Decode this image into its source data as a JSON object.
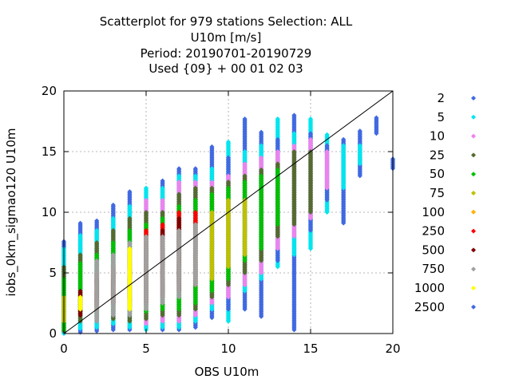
{
  "chart_data": {
    "type": "scatter",
    "title_lines": [
      "Scatterplot for  979 stations Selection: ALL",
      "U10m [m/s]",
      "Period: 20190701-20190729",
      "Used {09} + 00 01 02 03"
    ],
    "xlabel": "OBS U10m",
    "ylabel": "iobs_0km_sigmao120 U10m",
    "xlim": [
      0,
      20
    ],
    "ylim": [
      0,
      20
    ],
    "xticks": [
      0,
      5,
      10,
      15,
      20
    ],
    "yticks": [
      0,
      5,
      10,
      15,
      20
    ],
    "grid": true,
    "legend_position": "right",
    "reference_line": [
      [
        0,
        0
      ],
      [
        20,
        20
      ]
    ],
    "series": [
      {
        "name": "2",
        "color": "#4169e1"
      },
      {
        "name": "5",
        "color": "#00e5ee"
      },
      {
        "name": "10",
        "color": "#ee82ee"
      },
      {
        "name": "25",
        "color": "#556b2f"
      },
      {
        "name": "50",
        "color": "#00c000"
      },
      {
        "name": "75",
        "color": "#c0c000"
      },
      {
        "name": "100",
        "color": "#ffb000"
      },
      {
        "name": "250",
        "color": "#ff0000"
      },
      {
        "name": "500",
        "color": "#800000"
      },
      {
        "name": "750",
        "color": "#a0a0a0"
      },
      {
        "name": "1000",
        "color": "#ffff00"
      },
      {
        "name": "2500",
        "color": "#4169e1"
      }
    ],
    "columns": [
      {
        "x": 0,
        "bands": [
          [
            0,
            7.6,
            "2"
          ],
          [
            0,
            7.0,
            "5"
          ],
          [
            0.2,
            5.5,
            "25"
          ],
          [
            0.3,
            4.5,
            "50"
          ],
          [
            1.0,
            3.0,
            "75"
          ]
        ]
      },
      {
        "x": 1,
        "bands": [
          [
            0.1,
            9.1,
            "2"
          ],
          [
            0.4,
            8.1,
            "5"
          ],
          [
            1.0,
            6.5,
            "25"
          ],
          [
            1.5,
            5.8,
            "50"
          ],
          [
            1.5,
            3.5,
            "500"
          ],
          [
            2.0,
            3.0,
            "1000"
          ]
        ]
      },
      {
        "x": 2,
        "bands": [
          [
            0.2,
            9.3,
            "2"
          ],
          [
            0.5,
            8.5,
            "5"
          ],
          [
            1.0,
            7.5,
            "25"
          ],
          [
            1.5,
            6.5,
            "50"
          ],
          [
            2.0,
            5.0,
            "250"
          ],
          [
            2.5,
            4.5,
            "500"
          ],
          [
            1.0,
            6.0,
            "750"
          ]
        ]
      },
      {
        "x": 3,
        "bands": [
          [
            0.3,
            10.6,
            "2"
          ],
          [
            0.8,
            9.5,
            "5"
          ],
          [
            1.2,
            8.5,
            "25"
          ],
          [
            1.8,
            7.5,
            "50"
          ],
          [
            2.5,
            5.5,
            "250"
          ],
          [
            2.5,
            4.8,
            "500"
          ],
          [
            1.5,
            6.5,
            "750"
          ]
        ]
      },
      {
        "x": 4,
        "bands": [
          [
            0.3,
            11.7,
            "2"
          ],
          [
            0.5,
            10.5,
            "5"
          ],
          [
            1.0,
            9.5,
            "25"
          ],
          [
            1.5,
            8.5,
            "50"
          ],
          [
            2.5,
            7.0,
            "250"
          ],
          [
            2.8,
            6.0,
            "500"
          ],
          [
            1.5,
            7.5,
            "750"
          ],
          [
            2.0,
            7.0,
            "1000"
          ]
        ]
      },
      {
        "x": 5,
        "bands": [
          [
            0.3,
            12.0,
            "5"
          ],
          [
            0.8,
            11.0,
            "10"
          ],
          [
            1.2,
            10.0,
            "25"
          ],
          [
            1.8,
            9.0,
            "50"
          ],
          [
            2.5,
            8.5,
            "250"
          ],
          [
            2.5,
            7.5,
            "500"
          ],
          [
            2.0,
            8.0,
            "750"
          ]
        ]
      },
      {
        "x": 6,
        "bands": [
          [
            0.3,
            12.6,
            "2"
          ],
          [
            0.5,
            12.0,
            "5"
          ],
          [
            1.0,
            11.0,
            "10"
          ],
          [
            1.5,
            10.0,
            "25"
          ],
          [
            2.0,
            9.5,
            "50"
          ],
          [
            3.0,
            9.0,
            "250"
          ],
          [
            3.0,
            8.5,
            "500"
          ],
          [
            2.5,
            8.0,
            "750"
          ]
        ]
      },
      {
        "x": 7,
        "bands": [
          [
            0.3,
            13.6,
            "2"
          ],
          [
            0.5,
            13.0,
            "5"
          ],
          [
            1.0,
            12.5,
            "10"
          ],
          [
            1.5,
            11.5,
            "25"
          ],
          [
            2.0,
            10.5,
            "50"
          ],
          [
            3.5,
            10.0,
            "250"
          ],
          [
            3.5,
            9.5,
            "500"
          ],
          [
            3.0,
            8.5,
            "750"
          ]
        ]
      },
      {
        "x": 8,
        "bands": [
          [
            0.5,
            13.6,
            "2"
          ],
          [
            1.0,
            13.0,
            "5"
          ],
          [
            1.5,
            12.5,
            "10"
          ],
          [
            2.0,
            12.0,
            "25"
          ],
          [
            2.5,
            11.0,
            "50"
          ],
          [
            4.0,
            10.0,
            "250"
          ],
          [
            4.0,
            9.0,
            "750"
          ]
        ]
      },
      {
        "x": 9,
        "bands": [
          [
            1.3,
            15.4,
            "2"
          ],
          [
            2.0,
            13.6,
            "5"
          ],
          [
            2.5,
            12.5,
            "10"
          ],
          [
            3.0,
            12.0,
            "25"
          ],
          [
            3.5,
            11.5,
            "50"
          ],
          [
            4.5,
            10.0,
            "75"
          ]
        ]
      },
      {
        "x": 10,
        "bands": [
          [
            1.0,
            15.8,
            "5"
          ],
          [
            2.0,
            14.5,
            "2"
          ],
          [
            3.0,
            13.0,
            "10"
          ],
          [
            4.0,
            12.5,
            "25"
          ],
          [
            4.5,
            12.0,
            "50"
          ],
          [
            5.5,
            11.0,
            "75"
          ]
        ]
      },
      {
        "x": 11,
        "bands": [
          [
            2.0,
            17.7,
            "2"
          ],
          [
            3.5,
            15.0,
            "5"
          ],
          [
            4.0,
            14.0,
            "10"
          ],
          [
            5.0,
            13.0,
            "25"
          ],
          [
            6.0,
            12.5,
            "50"
          ],
          [
            6.5,
            11.0,
            "75"
          ]
        ]
      },
      {
        "x": 12,
        "bands": [
          [
            1.4,
            16.6,
            "2"
          ],
          [
            4.5,
            15.5,
            "5"
          ],
          [
            5.0,
            14.5,
            "10"
          ],
          [
            6.0,
            13.5,
            "25"
          ],
          [
            7.0,
            13.0,
            "50"
          ]
        ]
      },
      {
        "x": 13,
        "bands": [
          [
            5.5,
            17.7,
            "5"
          ],
          [
            6.0,
            16.0,
            "2"
          ],
          [
            7.0,
            15.0,
            "10"
          ],
          [
            8.0,
            14.0,
            "25"
          ],
          [
            9.0,
            13.5,
            "50"
          ]
        ]
      },
      {
        "x": 14,
        "bands": [
          [
            0.3,
            18.0,
            "2"
          ],
          [
            6.5,
            16.5,
            "5"
          ],
          [
            8.0,
            15.5,
            "10"
          ],
          [
            9.0,
            15.0,
            "25"
          ]
        ]
      },
      {
        "x": 15,
        "bands": [
          [
            7.0,
            17.7,
            "5"
          ],
          [
            8.5,
            16.5,
            "2"
          ],
          [
            9.5,
            16.0,
            "10"
          ],
          [
            10.0,
            15.0,
            "25"
          ]
        ]
      },
      {
        "x": 16,
        "bands": [
          [
            10.0,
            16.4,
            "5"
          ],
          [
            11.0,
            15.5,
            "2"
          ],
          [
            12.0,
            15.0,
            "10"
          ]
        ]
      },
      {
        "x": 17,
        "bands": [
          [
            9.1,
            16.0,
            "2"
          ],
          [
            12.0,
            15.5,
            "5"
          ]
        ]
      },
      {
        "x": 18,
        "bands": [
          [
            13.0,
            16.7,
            "2"
          ],
          [
            14.0,
            15.5,
            "5"
          ]
        ]
      },
      {
        "x": 19,
        "bands": [
          [
            16.5,
            17.8,
            "2"
          ]
        ]
      },
      {
        "x": 20,
        "bands": [
          [
            13.6,
            14.4,
            "2"
          ]
        ]
      }
    ]
  }
}
